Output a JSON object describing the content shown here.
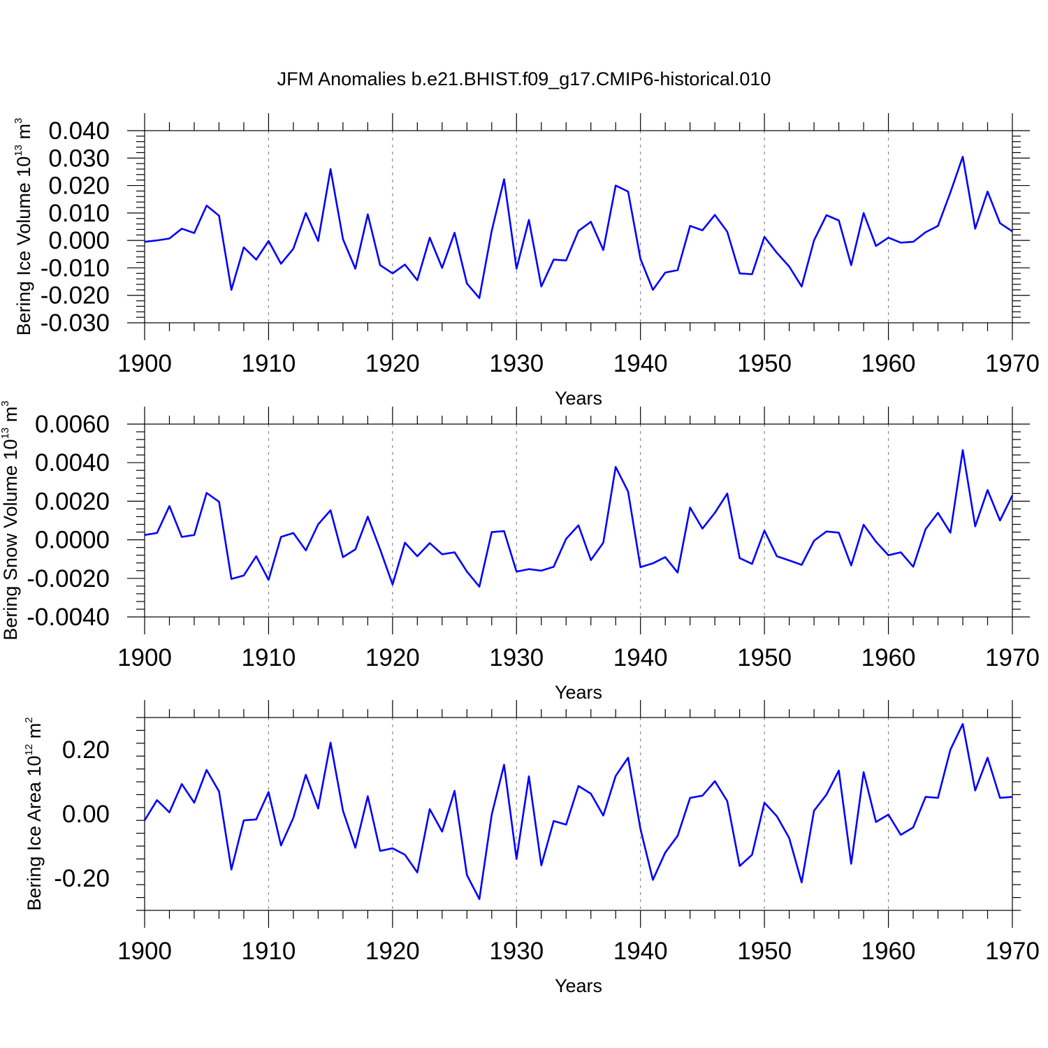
{
  "chart_data": {
    "type": "line",
    "title": "JFM Anomalies b.e21.BHIST.f09_g17.CMIP6-historical.010",
    "x": [
      1900,
      1901,
      1902,
      1903,
      1904,
      1905,
      1906,
      1907,
      1908,
      1909,
      1910,
      1911,
      1912,
      1913,
      1914,
      1915,
      1916,
      1917,
      1918,
      1919,
      1920,
      1921,
      1922,
      1923,
      1924,
      1925,
      1926,
      1927,
      1928,
      1929,
      1930,
      1931,
      1932,
      1933,
      1934,
      1935,
      1936,
      1937,
      1938,
      1939,
      1940,
      1941,
      1942,
      1943,
      1944,
      1945,
      1946,
      1947,
      1948,
      1949,
      1950,
      1951,
      1952,
      1953,
      1954,
      1955,
      1956,
      1957,
      1958,
      1959,
      1960,
      1961,
      1962,
      1963,
      1964,
      1965,
      1966,
      1967,
      1968,
      1969,
      1970
    ],
    "panels": [
      {
        "ylabel": "Bering Ice Volume 10",
        "ylabel_exp": "13",
        "ylabel_unit": " m",
        "ylabel_unit_exp": "3",
        "xlabel": "Years",
        "xlim": [
          1900,
          1970
        ],
        "ylim": [
          -0.03,
          0.04
        ],
        "xticks": [
          "1900",
          "1910",
          "1920",
          "1930",
          "1940",
          "1950",
          "1960",
          "1970"
        ],
        "yticks": [
          {
            "v": -0.03,
            "label": "-0.030"
          },
          {
            "v": -0.02,
            "label": "-0.020"
          },
          {
            "v": -0.01,
            "label": "-0.010"
          },
          {
            "v": 0.0,
            "label": "0.000"
          },
          {
            "v": 0.01,
            "label": "0.010"
          },
          {
            "v": 0.02,
            "label": "0.020"
          },
          {
            "v": 0.03,
            "label": "0.030"
          },
          {
            "v": 0.04,
            "label": "0.040"
          }
        ],
        "values": [
          -0.0005,
          0.0,
          0.0007,
          0.0043,
          0.0027,
          0.0127,
          0.009,
          -0.018,
          -0.0025,
          -0.007,
          -0.0002,
          -0.0085,
          -0.003,
          0.01,
          -0.0002,
          0.026,
          0.0005,
          -0.0103,
          0.0095,
          -0.009,
          -0.012,
          -0.0088,
          -0.0145,
          0.001,
          -0.01,
          0.0028,
          -0.0157,
          -0.021,
          0.0035,
          0.0223,
          -0.0103,
          0.0075,
          -0.0168,
          -0.007,
          -0.0073,
          0.0035,
          0.0068,
          -0.0035,
          0.02,
          0.0178,
          -0.0067,
          -0.018,
          -0.0117,
          -0.0108,
          0.0053,
          0.0037,
          0.0093,
          0.0032,
          -0.012,
          -0.0123,
          0.0013,
          -0.0045,
          -0.0095,
          -0.0168,
          0.0,
          0.0092,
          0.0073,
          -0.009,
          0.01,
          -0.002,
          0.001,
          -0.0008,
          -0.0005,
          0.003,
          0.0053,
          0.0175,
          0.0305,
          0.0043,
          0.0178,
          0.0063,
          0.0033
        ]
      },
      {
        "ylabel": "Bering Snow Volume 10",
        "ylabel_exp": "13",
        "ylabel_unit": " m",
        "ylabel_unit_exp": "3",
        "xlabel": "Years",
        "xlim": [
          1900,
          1970
        ],
        "ylim": [
          -0.004,
          0.006
        ],
        "xticks": [
          "1900",
          "1910",
          "1920",
          "1930",
          "1940",
          "1950",
          "1960",
          "1970"
        ],
        "yticks": [
          {
            "v": -0.004,
            "label": "-0.0040"
          },
          {
            "v": -0.002,
            "label": "-0.0020"
          },
          {
            "v": 0.0,
            "label": "0.0000"
          },
          {
            "v": 0.002,
            "label": "0.0020"
          },
          {
            "v": 0.004,
            "label": "0.0040"
          },
          {
            "v": 0.006,
            "label": "0.0060"
          }
        ],
        "values": [
          0.00025,
          0.00035,
          0.00175,
          0.00015,
          0.00025,
          0.00243,
          0.00197,
          -0.00203,
          -0.00185,
          -0.00085,
          -0.00208,
          0.00015,
          0.00035,
          -0.00055,
          0.0008,
          0.00153,
          -0.0009,
          -0.0005,
          0.0012,
          -0.0005,
          -0.00232,
          -0.00015,
          -0.00085,
          -0.00017,
          -0.00075,
          -0.00065,
          -0.00165,
          -0.00243,
          0.0004,
          0.00045,
          -0.00165,
          -0.00152,
          -0.0016,
          -0.0014,
          5e-05,
          0.00075,
          -0.00105,
          -0.00015,
          0.00378,
          0.0025,
          -0.00142,
          -0.00122,
          -0.0009,
          -0.0017,
          0.00167,
          0.00058,
          0.0014,
          0.0024,
          -0.00095,
          -0.00125,
          0.00048,
          -0.00085,
          -0.00107,
          -0.0013,
          -5e-05,
          0.00043,
          0.00037,
          -0.00133,
          0.00078,
          -0.0001,
          -0.0008,
          -0.00065,
          -0.0014,
          0.00055,
          0.0014,
          0.00037,
          0.00465,
          0.0007,
          0.00258,
          0.001,
          0.0023
        ]
      },
      {
        "ylabel": "Bering Ice Area 10",
        "ylabel_exp": "12",
        "ylabel_unit": " m",
        "ylabel_unit_exp": "2",
        "xlabel": "Years",
        "xlim": [
          1900,
          1970
        ],
        "ylim": [
          -0.3,
          0.3
        ],
        "xticks": [
          "1900",
          "1910",
          "1920",
          "1930",
          "1940",
          "1950",
          "1960",
          "1970"
        ],
        "yticks": [
          {
            "v": -0.2,
            "label": "-0.20"
          },
          {
            "v": 0.0,
            "label": "0.00"
          },
          {
            "v": 0.2,
            "label": "0.20"
          }
        ],
        "values": [
          -0.02,
          0.043,
          0.005,
          0.093,
          0.035,
          0.137,
          0.07,
          -0.173,
          -0.02,
          -0.017,
          0.068,
          -0.098,
          -0.012,
          0.122,
          0.017,
          0.222,
          0.01,
          -0.105,
          0.055,
          -0.115,
          -0.107,
          -0.127,
          -0.182,
          0.015,
          -0.055,
          0.072,
          -0.19,
          -0.265,
          -0.002,
          0.153,
          -0.14,
          0.117,
          -0.16,
          -0.022,
          -0.033,
          0.087,
          0.063,
          -0.005,
          0.118,
          0.175,
          -0.047,
          -0.205,
          -0.12,
          -0.068,
          0.05,
          0.057,
          0.102,
          0.04,
          -0.162,
          -0.127,
          0.035,
          -0.007,
          -0.075,
          -0.213,
          0.01,
          0.06,
          0.135,
          -0.155,
          0.13,
          -0.025,
          -0.002,
          -0.065,
          -0.042,
          0.053,
          0.05,
          0.2,
          0.28,
          0.073,
          0.175,
          0.05,
          0.053
        ]
      }
    ]
  }
}
